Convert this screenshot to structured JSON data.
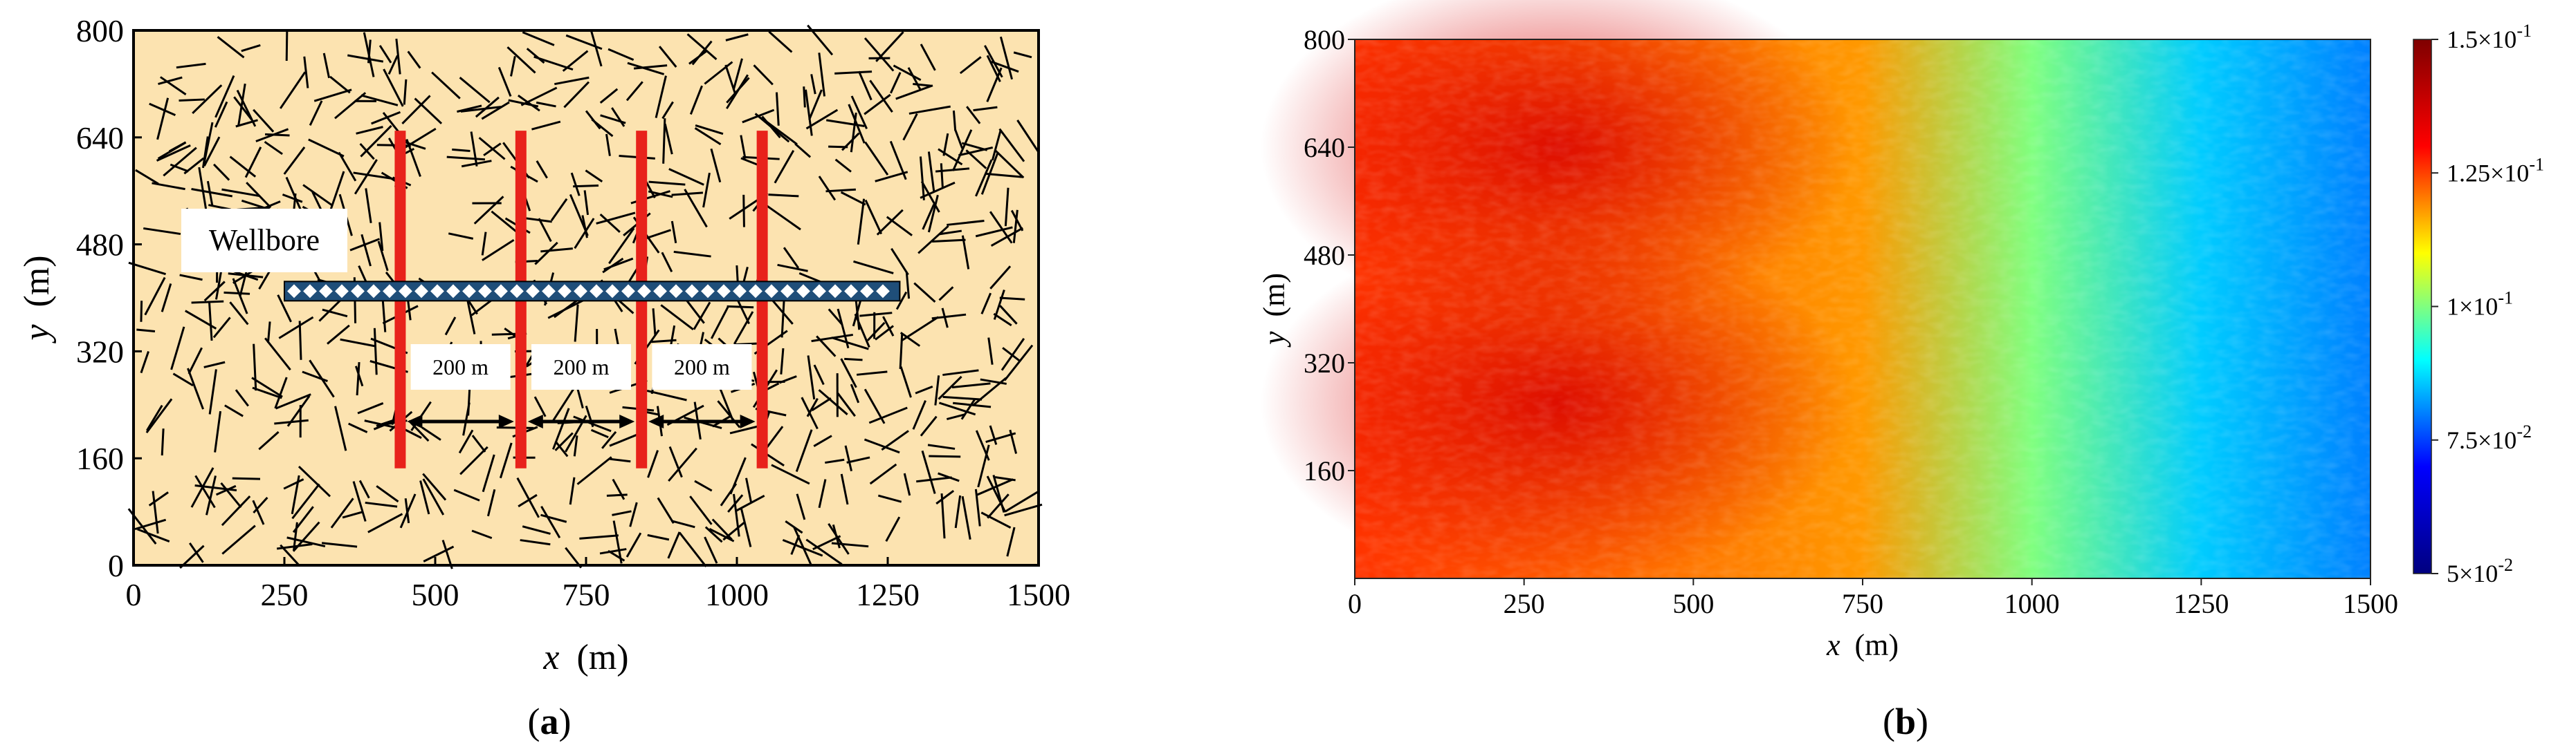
{
  "chart_data": [
    {
      "panel_label": "(a)",
      "panel_letter": "a",
      "type": "scatter",
      "title": "",
      "xlabel_var": "x",
      "xlabel_unit": "(m)",
      "ylabel_var": "y",
      "ylabel_unit": "(m)",
      "xlim": [
        0,
        1500
      ],
      "ylim": [
        0,
        800
      ],
      "xticks": [
        0,
        250,
        500,
        750,
        1000,
        1250,
        1500
      ],
      "yticks": [
        0,
        160,
        320,
        480,
        640,
        800
      ],
      "background_color": "#FCE3B0",
      "wellbore": {
        "label": "Wellbore",
        "x_start": 250,
        "x_end": 1270,
        "y": 410,
        "color": "#1F4E79"
      },
      "hydraulic_fractures": {
        "color": "#E8221B",
        "x": [
          442,
          642,
          842,
          1042
        ],
        "y_bottom": 145,
        "y_top": 650
      },
      "spacing_annotations": [
        {
          "label": "200 m",
          "x_start": 442,
          "x_end": 642,
          "y": 215
        },
        {
          "label": "200 m",
          "x_start": 642,
          "x_end": 842,
          "y": 215
        },
        {
          "label": "200 m",
          "x_start": 842,
          "x_end": 1042,
          "y": 215
        }
      ],
      "natural_fractures": {
        "color": "#000000",
        "count": 700,
        "length_m": 50
      }
    },
    {
      "panel_label": "(b)",
      "panel_letter": "b",
      "type": "heatmap",
      "title": "",
      "xlabel_var": "x",
      "xlabel_unit": "(m)",
      "ylabel_var": "y",
      "ylabel_unit": "(m)",
      "xlim": [
        0,
        1500
      ],
      "ylim": [
        0,
        800
      ],
      "xticks": [
        0,
        250,
        500,
        750,
        1000,
        1250,
        1500
      ],
      "yticks": [
        160,
        320,
        480,
        640,
        800
      ],
      "colorbar": {
        "min": 0.05,
        "max": 0.15,
        "ticks": [
          0.05,
          0.075,
          0.1,
          0.125,
          0.15
        ],
        "tick_labels": [
          {
            "mantissa": "5×10",
            "exp": "-2"
          },
          {
            "mantissa": "7.5×10",
            "exp": "-2"
          },
          {
            "mantissa": "1×10",
            "exp": "-1"
          },
          {
            "mantissa": "1.25×10",
            "exp": "-1"
          },
          {
            "mantissa": "1.5×10",
            "exp": "-1"
          }
        ],
        "colormap": [
          "#00007F",
          "#0000FF",
          "#00FFFF",
          "#FFFF00",
          "#FF0000",
          "#7F0000"
        ]
      },
      "field": {
        "description_points": [
          {
            "x": 300,
            "y": 640,
            "value": 0.14
          },
          {
            "x": 300,
            "y": 260,
            "value": 0.14
          },
          {
            "x": 0,
            "y": 450,
            "value": 0.126
          },
          {
            "x": 750,
            "y": 450,
            "value": 0.118
          },
          {
            "x": 1000,
            "y": 450,
            "value": 0.1
          },
          {
            "x": 1250,
            "y": 450,
            "value": 0.086
          },
          {
            "x": 1500,
            "y": 450,
            "value": 0.08
          }
        ]
      }
    }
  ]
}
